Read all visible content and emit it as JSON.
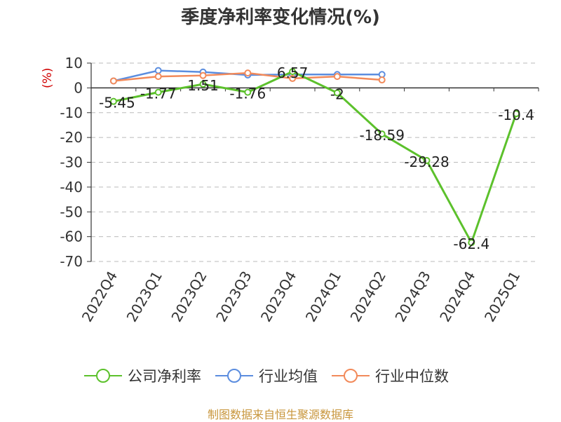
{
  "chart_data": {
    "type": "line",
    "title": "季度净利率变化情况(%)",
    "ylabel": "(%)",
    "categories": [
      "2022Q4",
      "2023Q1",
      "2023Q2",
      "2023Q3",
      "2023Q4",
      "2024Q1",
      "2024Q2",
      "2024Q3",
      "2024Q4",
      "2025Q1"
    ],
    "yticks": [
      10,
      0,
      -10,
      -20,
      -30,
      -40,
      -50,
      -60,
      -70
    ],
    "ylim": [
      -70,
      10
    ],
    "grid": true,
    "legend_position": "bottom",
    "series": [
      {
        "name": "公司净利率",
        "color": "#5cc12c",
        "values": [
          -5.45,
          -1.77,
          1.51,
          -1.76,
          6.57,
          -2,
          -18.59,
          -29.28,
          -62.4,
          -10.4
        ],
        "labels": [
          "-5.45",
          "-1.77",
          "1.51",
          "-1.76",
          "6.57",
          "-2",
          "-18.59",
          "-29.28",
          "-62.4",
          "-10.4"
        ]
      },
      {
        "name": "行业均值",
        "color": "#5b8ddf",
        "values": [
          2.8,
          7.0,
          6.4,
          5.2,
          5.4,
          5.4,
          5.4,
          null,
          null,
          null
        ]
      },
      {
        "name": "行业中位数",
        "color": "#f28a5a",
        "values": [
          2.8,
          4.6,
          5.0,
          6.0,
          3.8,
          4.6,
          3.2,
          null,
          null,
          null
        ]
      }
    ]
  },
  "source": "制图数据来自恒生聚源数据库"
}
